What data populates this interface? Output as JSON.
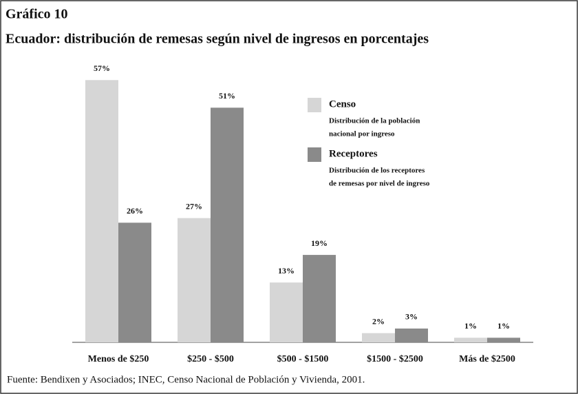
{
  "chart_data": {
    "type": "bar",
    "title": "Gráfico 10",
    "subtitle": "Ecuador: distribución de remesas según nivel de ingresos en porcentajes",
    "categories": [
      "Menos de $250",
      "$250 - $500",
      "$500 - $1500",
      "$1500 - $2500",
      "Más de $2500"
    ],
    "series": [
      {
        "name": "Censo",
        "color": "#d6d6d6",
        "description": [
          "Distribución de la población",
          "nacional por ingreso"
        ],
        "values": [
          57,
          27,
          13,
          2,
          1
        ],
        "value_labels": [
          "57%",
          "27%",
          "13%",
          "2%",
          "1%"
        ]
      },
      {
        "name": "Receptores",
        "color": "#8a8a8a",
        "description": [
          "Distribución de los receptores",
          "de remesas por nivel de ingreso"
        ],
        "values": [
          26,
          51,
          19,
          3,
          1
        ],
        "value_labels": [
          "26%",
          "51%",
          "19%",
          "3%",
          "1%"
        ]
      }
    ],
    "source": "Fuente:  Bendixen y Asociados; INEC, Censo Nacional de Población y Vivienda, 2001."
  }
}
